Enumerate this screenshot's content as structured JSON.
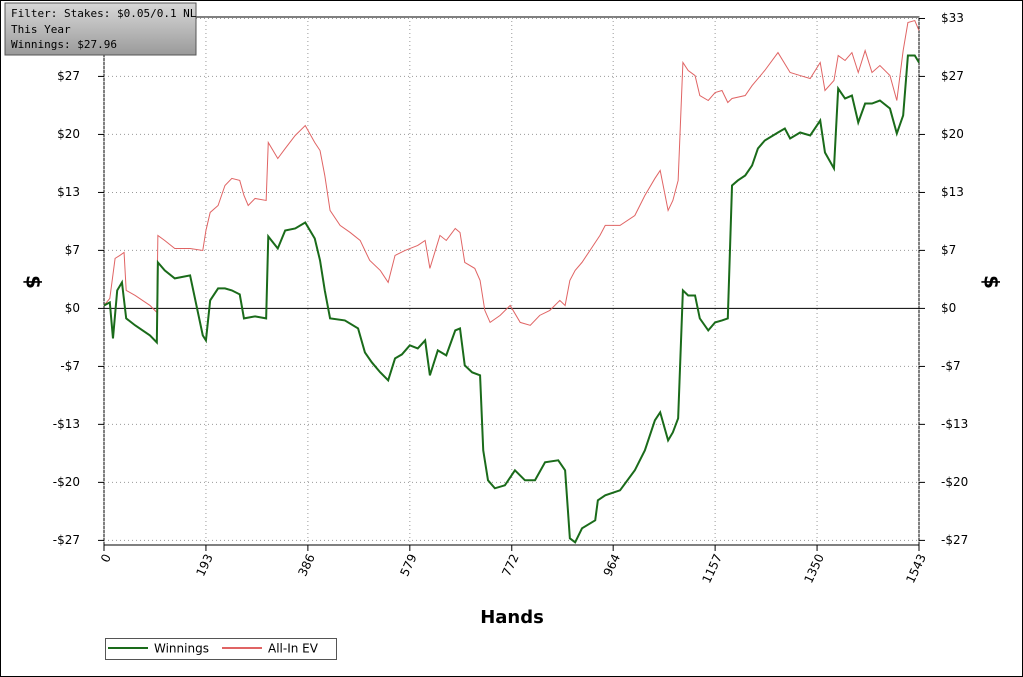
{
  "chart_data": {
    "type": "line",
    "legend_text": [
      "Filter: Stakes: $0.05/0.1 NL",
      "This Year",
      "Winnings: $27.96"
    ],
    "xlabel": "Hands",
    "ylabel": "$",
    "y2label": "$",
    "xlim": [
      0,
      1543
    ],
    "xticks": [
      0,
      193,
      386,
      579,
      772,
      964,
      1157,
      1350,
      1543
    ],
    "ylim": [
      -27.2,
      33.5
    ],
    "yticks": [
      {
        "value": -26.67,
        "label": "-$27"
      },
      {
        "value": -20,
        "label": "-$20"
      },
      {
        "value": -13.33,
        "label": "-$13"
      },
      {
        "value": -6.67,
        "label": "-$7"
      },
      {
        "value": 0,
        "label": "$0"
      },
      {
        "value": 6.67,
        "label": "$7"
      },
      {
        "value": 13.33,
        "label": "$13"
      },
      {
        "value": 20,
        "label": "$20"
      },
      {
        "value": 26.67,
        "label": "$27"
      },
      {
        "value": 33.33,
        "label": "$33"
      }
    ],
    "grid": true,
    "series": [
      {
        "name": "Winnings",
        "color": "#1a6b1a",
        "x": [
          0,
          11,
          17,
          25,
          34,
          42,
          59,
          87,
          100,
          102,
          115,
          134,
          163,
          187,
          193,
          201,
          216,
          229,
          242,
          257,
          265,
          286,
          307,
          311,
          329,
          343,
          362,
          381,
          399,
          409,
          418,
          428,
          456,
          481,
          494,
          507,
          523,
          538,
          551,
          564,
          579,
          594,
          608,
          617,
          632,
          648,
          665,
          674,
          683,
          697,
          712,
          718,
          727,
          740,
          759,
          778,
          797,
          816,
          835,
          860,
          873,
          882,
          892,
          905,
          930,
          935,
          949,
          977,
          1005,
          1024,
          1043,
          1053,
          1068,
          1077,
          1087,
          1096,
          1106,
          1119,
          1128,
          1144,
          1157,
          1170,
          1181,
          1189,
          1200,
          1214,
          1227,
          1238,
          1251,
          1276,
          1289,
          1299,
          1318,
          1337,
          1356,
          1365,
          1382,
          1390,
          1403,
          1416,
          1428,
          1441,
          1454,
          1469,
          1488,
          1501,
          1513,
          1522,
          1535,
          1543
        ],
        "values": [
          0.34,
          0.69,
          -3.45,
          2.07,
          2.99,
          -1.15,
          -1.95,
          -3.1,
          -3.91,
          5.29,
          4.37,
          3.45,
          3.79,
          -3.1,
          -3.68,
          0.92,
          2.3,
          2.3,
          2.07,
          1.61,
          -1.15,
          -0.92,
          -1.15,
          8.27,
          6.89,
          8.96,
          9.19,
          9.88,
          8.04,
          5.52,
          2.07,
          -1.15,
          -1.38,
          -2.3,
          -5.06,
          -6.2,
          -7.35,
          -8.27,
          -5.75,
          -5.29,
          -4.25,
          -4.6,
          -3.68,
          -7.7,
          -4.83,
          -5.4,
          -2.53,
          -2.3,
          -6.55,
          -7.35,
          -7.7,
          -16.32,
          -19.76,
          -20.68,
          -20.34,
          -18.61,
          -19.76,
          -19.76,
          -17.69,
          -17.46,
          -18.61,
          -26.43,
          -26.89,
          -25.28,
          -24.36,
          -22.06,
          -21.49,
          -20.91,
          -18.61,
          -16.32,
          -12.87,
          -11.95,
          -15.17,
          -14.25,
          -12.64,
          2.07,
          1.49,
          1.49,
          -1.15,
          -2.53,
          -1.61,
          -1.38,
          -1.15,
          14.13,
          14.71,
          15.28,
          16.43,
          18.38,
          19.3,
          20.22,
          20.68,
          19.53,
          20.22,
          19.88,
          21.6,
          17.92,
          16.09,
          25.28,
          24.13,
          24.47,
          21.37,
          23.55,
          23.55,
          23.9,
          22.98,
          20.11,
          22.18,
          29.07,
          29.07,
          28.27
        ]
      },
      {
        "name": "All-In EV",
        "color": "#e06464",
        "x": [
          0,
          11,
          21,
          30,
          38,
          42,
          59,
          87,
          100,
          102,
          115,
          134,
          163,
          187,
          193,
          201,
          216,
          229,
          242,
          257,
          265,
          273,
          286,
          307,
          311,
          329,
          343,
          362,
          381,
          399,
          409,
          418,
          428,
          447,
          466,
          485,
          503,
          523,
          538,
          551,
          570,
          594,
          608,
          617,
          636,
          648,
          665,
          674,
          683,
          702,
          712,
          721,
          731,
          750,
          769,
          788,
          807,
          825,
          844,
          863,
          873,
          882,
          892,
          905,
          920,
          939,
          949,
          977,
          1005,
          1024,
          1043,
          1053,
          1068,
          1077,
          1087,
          1096,
          1106,
          1119,
          1128,
          1144,
          1157,
          1170,
          1181,
          1189,
          1214,
          1227,
          1251,
          1276,
          1299,
          1318,
          1337,
          1356,
          1365,
          1382,
          1390,
          1403,
          1416,
          1428,
          1441,
          1454,
          1469,
          1488,
          1501,
          1513,
          1522,
          1535,
          1543
        ],
        "values": [
          0.34,
          1.15,
          5.75,
          6.09,
          6.43,
          2.07,
          1.49,
          0.34,
          -0.46,
          8.39,
          7.81,
          6.89,
          6.89,
          6.66,
          8.96,
          11.03,
          11.83,
          14.13,
          14.94,
          14.71,
          12.98,
          11.83,
          12.64,
          12.41,
          19.07,
          17.23,
          18.38,
          19.88,
          21.02,
          19.07,
          18.15,
          15.28,
          11.26,
          9.54,
          8.73,
          7.81,
          5.52,
          4.37,
          2.99,
          6.09,
          6.66,
          7.24,
          7.81,
          4.6,
          8.39,
          7.81,
          9.19,
          8.73,
          5.29,
          4.6,
          3.22,
          -0.23,
          -1.61,
          -0.8,
          0.34,
          -1.61,
          -1.95,
          -0.8,
          -0.23,
          0.92,
          0.34,
          3.22,
          4.37,
          5.29,
          6.66,
          8.39,
          9.54,
          9.54,
          10.68,
          12.98,
          14.94,
          15.86,
          11.26,
          12.41,
          14.71,
          28.27,
          27.35,
          26.77,
          24.47,
          23.9,
          24.82,
          25.05,
          23.67,
          24.13,
          24.47,
          25.62,
          27.35,
          29.41,
          27.12,
          26.77,
          26.43,
          28.27,
          25.05,
          26.2,
          29.07,
          28.5,
          29.41,
          27.12,
          29.64,
          27.12,
          27.92,
          26.77,
          23.9,
          29.64,
          32.86,
          33.09,
          31.94
        ]
      }
    ]
  }
}
